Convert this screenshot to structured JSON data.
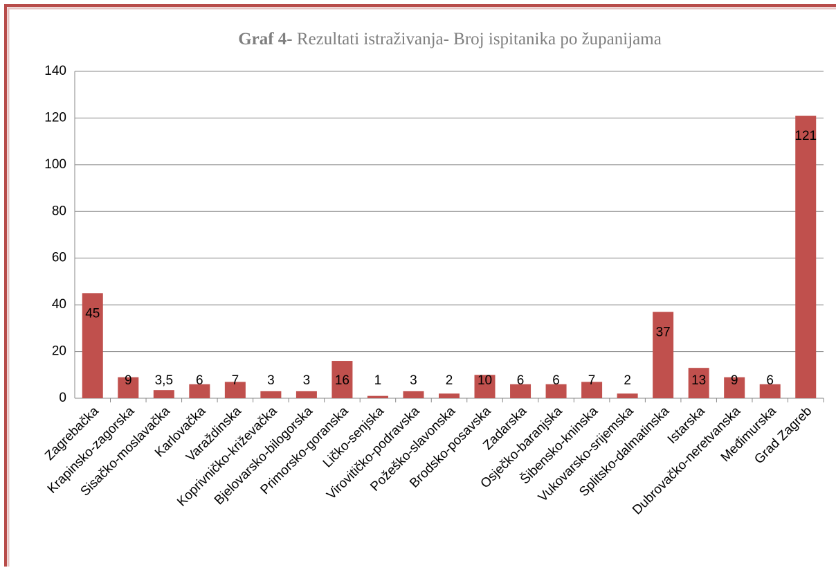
{
  "chart_data": {
    "type": "bar",
    "title": {
      "bold": "Graf 4-",
      "text": "Rezultati istraživanja- Broj ispitanika po županijama"
    },
    "categories": [
      "Zagrebačka",
      "Krapinsko-zagorska",
      "Sisačko-moslavačka",
      "Karlovačka",
      "Varaždinska",
      "Koprivničko-križevačka",
      "Bjelovarsko-bilogorska",
      "Primorsko-goranska",
      "Ličko-senjska",
      "Virovitičko-podravska",
      "Požeško-slavonska",
      "Brodsko-posavska",
      "Zadarska",
      "Osječko-baranjska",
      "Šibensko-kninska",
      "Vukovarsko-srijemska",
      "Splitsko-dalmatinska",
      "Istarska",
      "Dubrovačko-neretvanska",
      "Međimurska",
      "Grad Zagreb"
    ],
    "values": [
      45,
      9,
      3.5,
      6,
      7,
      3,
      3,
      16,
      1,
      3,
      2,
      10,
      6,
      6,
      7,
      2,
      37,
      13,
      9,
      6,
      121
    ],
    "value_labels": [
      "45",
      "9",
      "3,5",
      "6",
      "7",
      "3",
      "3",
      "16",
      "1",
      "3",
      "2",
      "10",
      "6",
      "6",
      "7",
      "2",
      "37",
      "13",
      "9",
      "6",
      "121"
    ],
    "color": "#c0504d",
    "ylim": [
      0,
      140
    ],
    "yticks": [
      0,
      20,
      40,
      60,
      80,
      100,
      120,
      140
    ],
    "grid": true
  }
}
